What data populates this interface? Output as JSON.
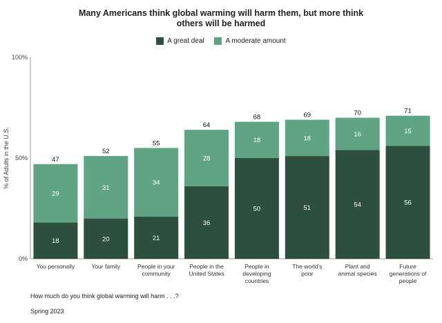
{
  "chart_data": {
    "type": "bar",
    "stacked": true,
    "title_line1": "Many Americans think global warming will harm them, but more think",
    "title_line2": "others will be harmed",
    "ylabel": "% of Adults in the U.S.",
    "ylim": [
      0,
      100
    ],
    "yticks": [
      "0%",
      "50%",
      "100%"
    ],
    "categories": [
      [
        "You personally"
      ],
      [
        "Your family"
      ],
      [
        "People in your",
        "community"
      ],
      [
        "People in the",
        "United States"
      ],
      [
        "People in",
        "developing",
        "countries"
      ],
      [
        "The world's",
        "poor"
      ],
      [
        "Plant and",
        "animal species"
      ],
      [
        "Future",
        "generations of",
        "people"
      ]
    ],
    "series": [
      {
        "name": "A great deal",
        "color": "#2c4f40",
        "values": [
          18,
          20,
          21,
          36,
          50,
          51,
          54,
          56
        ]
      },
      {
        "name": "A moderate amount",
        "color": "#5fa584",
        "values": [
          29,
          31,
          34,
          28,
          18,
          18,
          16,
          15
        ]
      }
    ],
    "totals": [
      47,
      52,
      55,
      64,
      68,
      69,
      70,
      71
    ],
    "legend_position": "top"
  },
  "question": "How much do you think global warming will harm . . .?",
  "footnote": "Spring 2023"
}
